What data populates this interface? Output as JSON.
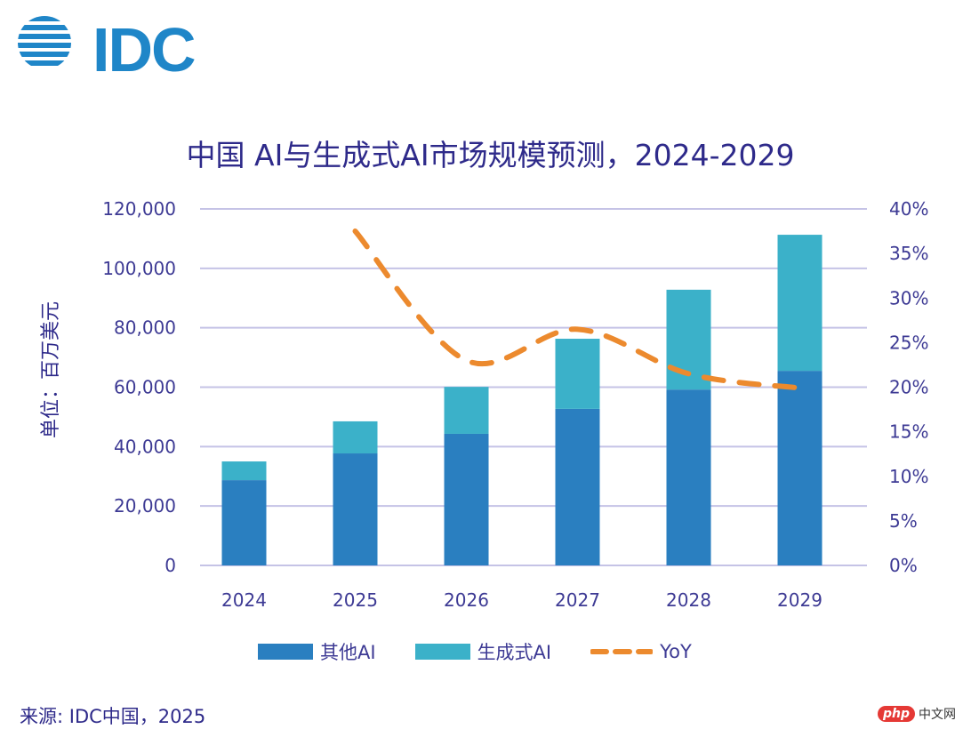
{
  "logo": {
    "text": "IDC",
    "brand_color": "#1f86c8"
  },
  "chart_data": {
    "type": "bar",
    "stacked": true,
    "title": "中国 AI与生成式AI市场规模预测，2024-2029",
    "ylabel": "单位：百万美元",
    "xlabel": "",
    "categories": [
      "2024",
      "2025",
      "2026",
      "2027",
      "2028",
      "2029"
    ],
    "ylim": [
      0,
      120000
    ],
    "yticks": [
      "0",
      "20,000",
      "40,000",
      "60,000",
      "80,000",
      "100,000",
      "120,000"
    ],
    "y2lim": [
      0,
      40
    ],
    "y2ticks": [
      "0%",
      "5%",
      "10%",
      "15%",
      "20%",
      "25%",
      "30%",
      "35%",
      "40%"
    ],
    "grid": true,
    "legend_position": "bottom",
    "series": [
      {
        "name": "其他AI",
        "type": "bar",
        "color": "#2a7fc0",
        "values": [
          28700,
          37700,
          44300,
          52700,
          59200,
          65500
        ]
      },
      {
        "name": "生成式AI",
        "type": "bar",
        "color": "#3bb1c9",
        "values": [
          6300,
          10800,
          15800,
          23600,
          33600,
          45800
        ]
      },
      {
        "name": "YoY",
        "type": "line",
        "axis": "right",
        "style": "dashed",
        "color": "#ec8a2e",
        "values": [
          null,
          37.5,
          23.0,
          26.5,
          21.5,
          19.9
        ]
      }
    ]
  },
  "source": "来源: IDC中国，2025",
  "watermark": {
    "badge": "php",
    "text": "中文网"
  }
}
